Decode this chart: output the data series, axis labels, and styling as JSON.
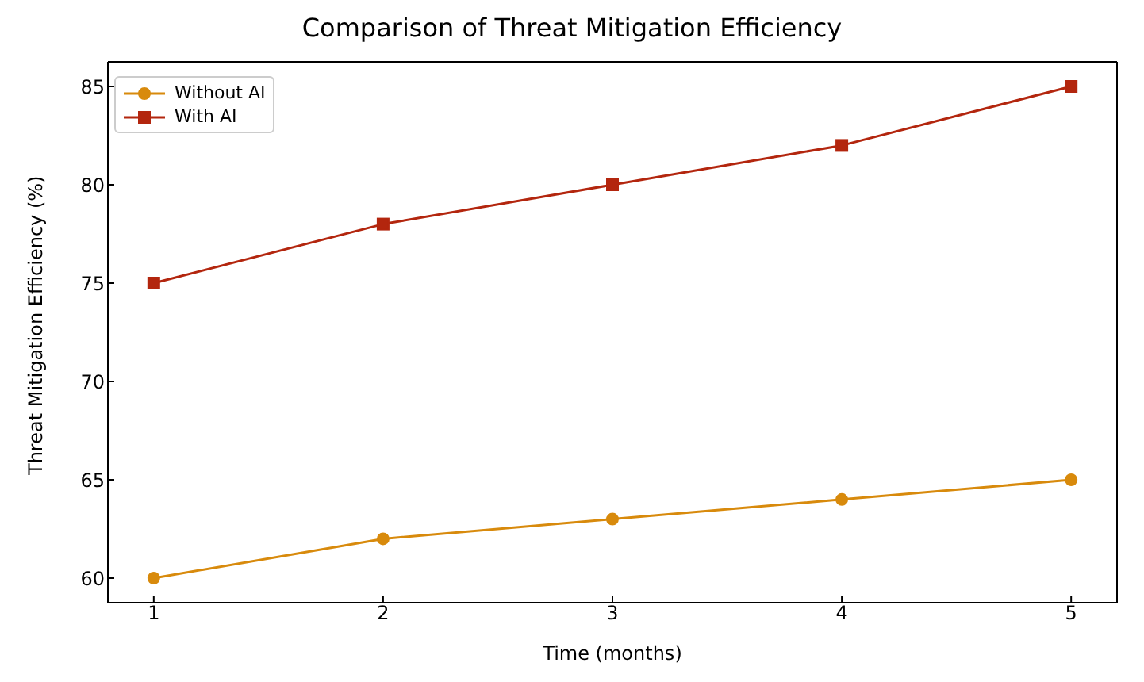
{
  "chart_data": {
    "type": "line",
    "title": "Comparison of Threat Mitigation Efficiency",
    "xlabel": "Time (months)",
    "ylabel": "Threat Mitigation Efficiency (%)",
    "x": [
      1,
      2,
      3,
      4,
      5
    ],
    "series": [
      {
        "name": "Without AI",
        "color": "#d88a0c",
        "marker": "circle",
        "values": [
          60,
          62,
          63,
          64,
          65
        ]
      },
      {
        "name": "With AI",
        "color": "#b3260e",
        "marker": "square",
        "values": [
          75,
          78,
          80,
          82,
          85
        ]
      }
    ],
    "xlim": [
      0.8,
      5.2
    ],
    "xticks": [
      1,
      2,
      3,
      4,
      5
    ],
    "ylim": [
      58.75,
      86.25
    ],
    "yticks": [
      60,
      65,
      70,
      75,
      80,
      85
    ],
    "legend": "top left",
    "grid": false,
    "line_style": "solid"
  }
}
